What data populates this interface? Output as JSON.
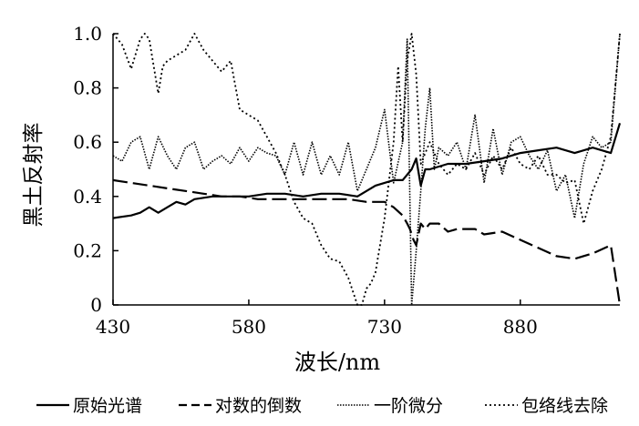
{
  "chart_data": {
    "type": "line",
    "xlabel": "波长/nm",
    "ylabel": "黑土反射率",
    "x_ticks": [
      "430",
      "580",
      "730",
      "880"
    ],
    "y_ticks": [
      "0",
      "0.2",
      "0.4",
      "0.6",
      "0.8",
      "1.0"
    ],
    "xlim": [
      430,
      990
    ],
    "ylim": [
      0,
      1.0
    ],
    "grid": false,
    "legend_position": "bottom",
    "series": [
      {
        "name": "原始光谱",
        "style": "solid",
        "x": [
          430,
          450,
          460,
          470,
          480,
          490,
          500,
          510,
          520,
          540,
          560,
          580,
          600,
          620,
          640,
          660,
          680,
          700,
          720,
          740,
          750,
          760,
          765,
          770,
          775,
          780,
          800,
          820,
          840,
          860,
          880,
          900,
          920,
          940,
          960,
          980,
          990
        ],
        "y": [
          0.32,
          0.33,
          0.34,
          0.36,
          0.34,
          0.36,
          0.38,
          0.37,
          0.39,
          0.4,
          0.4,
          0.4,
          0.41,
          0.41,
          0.4,
          0.41,
          0.41,
          0.4,
          0.44,
          0.46,
          0.46,
          0.5,
          0.54,
          0.44,
          0.5,
          0.5,
          0.52,
          0.52,
          0.53,
          0.54,
          0.56,
          0.57,
          0.58,
          0.56,
          0.58,
          0.56,
          0.67
        ]
      },
      {
        "name": "对数的倒数",
        "style": "dashed",
        "x": [
          430,
          450,
          470,
          490,
          510,
          530,
          550,
          570,
          590,
          610,
          630,
          650,
          670,
          690,
          710,
          730,
          740,
          750,
          755,
          758,
          762,
          765,
          770,
          775,
          780,
          790,
          800,
          810,
          820,
          830,
          840,
          860,
          880,
          900,
          920,
          940,
          960,
          980,
          990
        ],
        "y": [
          0.46,
          0.45,
          0.44,
          0.43,
          0.42,
          0.41,
          0.4,
          0.4,
          0.39,
          0.39,
          0.39,
          0.39,
          0.39,
          0.39,
          0.38,
          0.38,
          0.36,
          0.33,
          0.3,
          0.28,
          0.24,
          0.22,
          0.3,
          0.28,
          0.3,
          0.3,
          0.27,
          0.28,
          0.28,
          0.28,
          0.26,
          0.27,
          0.24,
          0.21,
          0.18,
          0.17,
          0.19,
          0.22,
          0.0
        ]
      },
      {
        "name": "一阶微分",
        "style": "fine-dotted",
        "x": [
          430,
          440,
          450,
          460,
          470,
          480,
          490,
          500,
          510,
          520,
          530,
          540,
          550,
          560,
          570,
          580,
          590,
          600,
          610,
          620,
          630,
          640,
          650,
          660,
          670,
          680,
          690,
          700,
          710,
          720,
          730,
          740,
          750,
          755,
          760,
          765,
          770,
          775,
          780,
          785,
          790,
          800,
          810,
          820,
          830,
          840,
          850,
          860,
          870,
          880,
          890,
          900,
          910,
          920,
          930,
          940,
          950,
          960,
          970,
          980,
          990
        ],
        "y": [
          0.55,
          0.53,
          0.6,
          0.62,
          0.5,
          0.62,
          0.55,
          0.5,
          0.58,
          0.6,
          0.5,
          0.53,
          0.55,
          0.52,
          0.58,
          0.53,
          0.58,
          0.56,
          0.55,
          0.48,
          0.6,
          0.48,
          0.6,
          0.48,
          0.55,
          0.48,
          0.6,
          0.42,
          0.5,
          0.58,
          0.72,
          0.45,
          0.6,
          0.98,
          0.0,
          0.2,
          0.42,
          0.65,
          0.8,
          0.5,
          0.58,
          0.55,
          0.6,
          0.5,
          0.7,
          0.45,
          0.65,
          0.48,
          0.6,
          0.62,
          0.55,
          0.5,
          0.57,
          0.42,
          0.48,
          0.32,
          0.52,
          0.62,
          0.58,
          0.6,
          1.0
        ]
      },
      {
        "name": "包络线去除",
        "style": "dotted",
        "x": [
          430,
          440,
          450,
          460,
          465,
          470,
          480,
          485,
          490,
          500,
          510,
          520,
          530,
          540,
          550,
          560,
          570,
          580,
          590,
          600,
          610,
          620,
          630,
          640,
          650,
          660,
          670,
          680,
          690,
          700,
          705,
          710,
          715,
          720,
          730,
          740,
          745,
          750,
          755,
          760,
          765,
          770,
          780,
          790,
          800,
          810,
          820,
          830,
          840,
          850,
          860,
          870,
          880,
          890,
          900,
          910,
          920,
          930,
          940,
          950,
          960,
          970,
          980,
          990
        ],
        "y": [
          1.0,
          0.96,
          0.87,
          0.98,
          1.0,
          0.98,
          0.78,
          0.88,
          0.9,
          0.92,
          0.94,
          1.0,
          0.94,
          0.9,
          0.86,
          0.9,
          0.72,
          0.7,
          0.68,
          0.62,
          0.56,
          0.48,
          0.38,
          0.32,
          0.3,
          0.22,
          0.17,
          0.16,
          0.1,
          0.0,
          0.0,
          0.06,
          0.08,
          0.12,
          0.32,
          0.6,
          0.88,
          0.6,
          0.9,
          1.0,
          0.85,
          0.52,
          0.6,
          0.52,
          0.48,
          0.52,
          0.5,
          0.56,
          0.48,
          0.55,
          0.5,
          0.58,
          0.52,
          0.5,
          0.55,
          0.48,
          0.48,
          0.45,
          0.46,
          0.3,
          0.42,
          0.5,
          0.62,
          1.0
        ]
      }
    ]
  }
}
